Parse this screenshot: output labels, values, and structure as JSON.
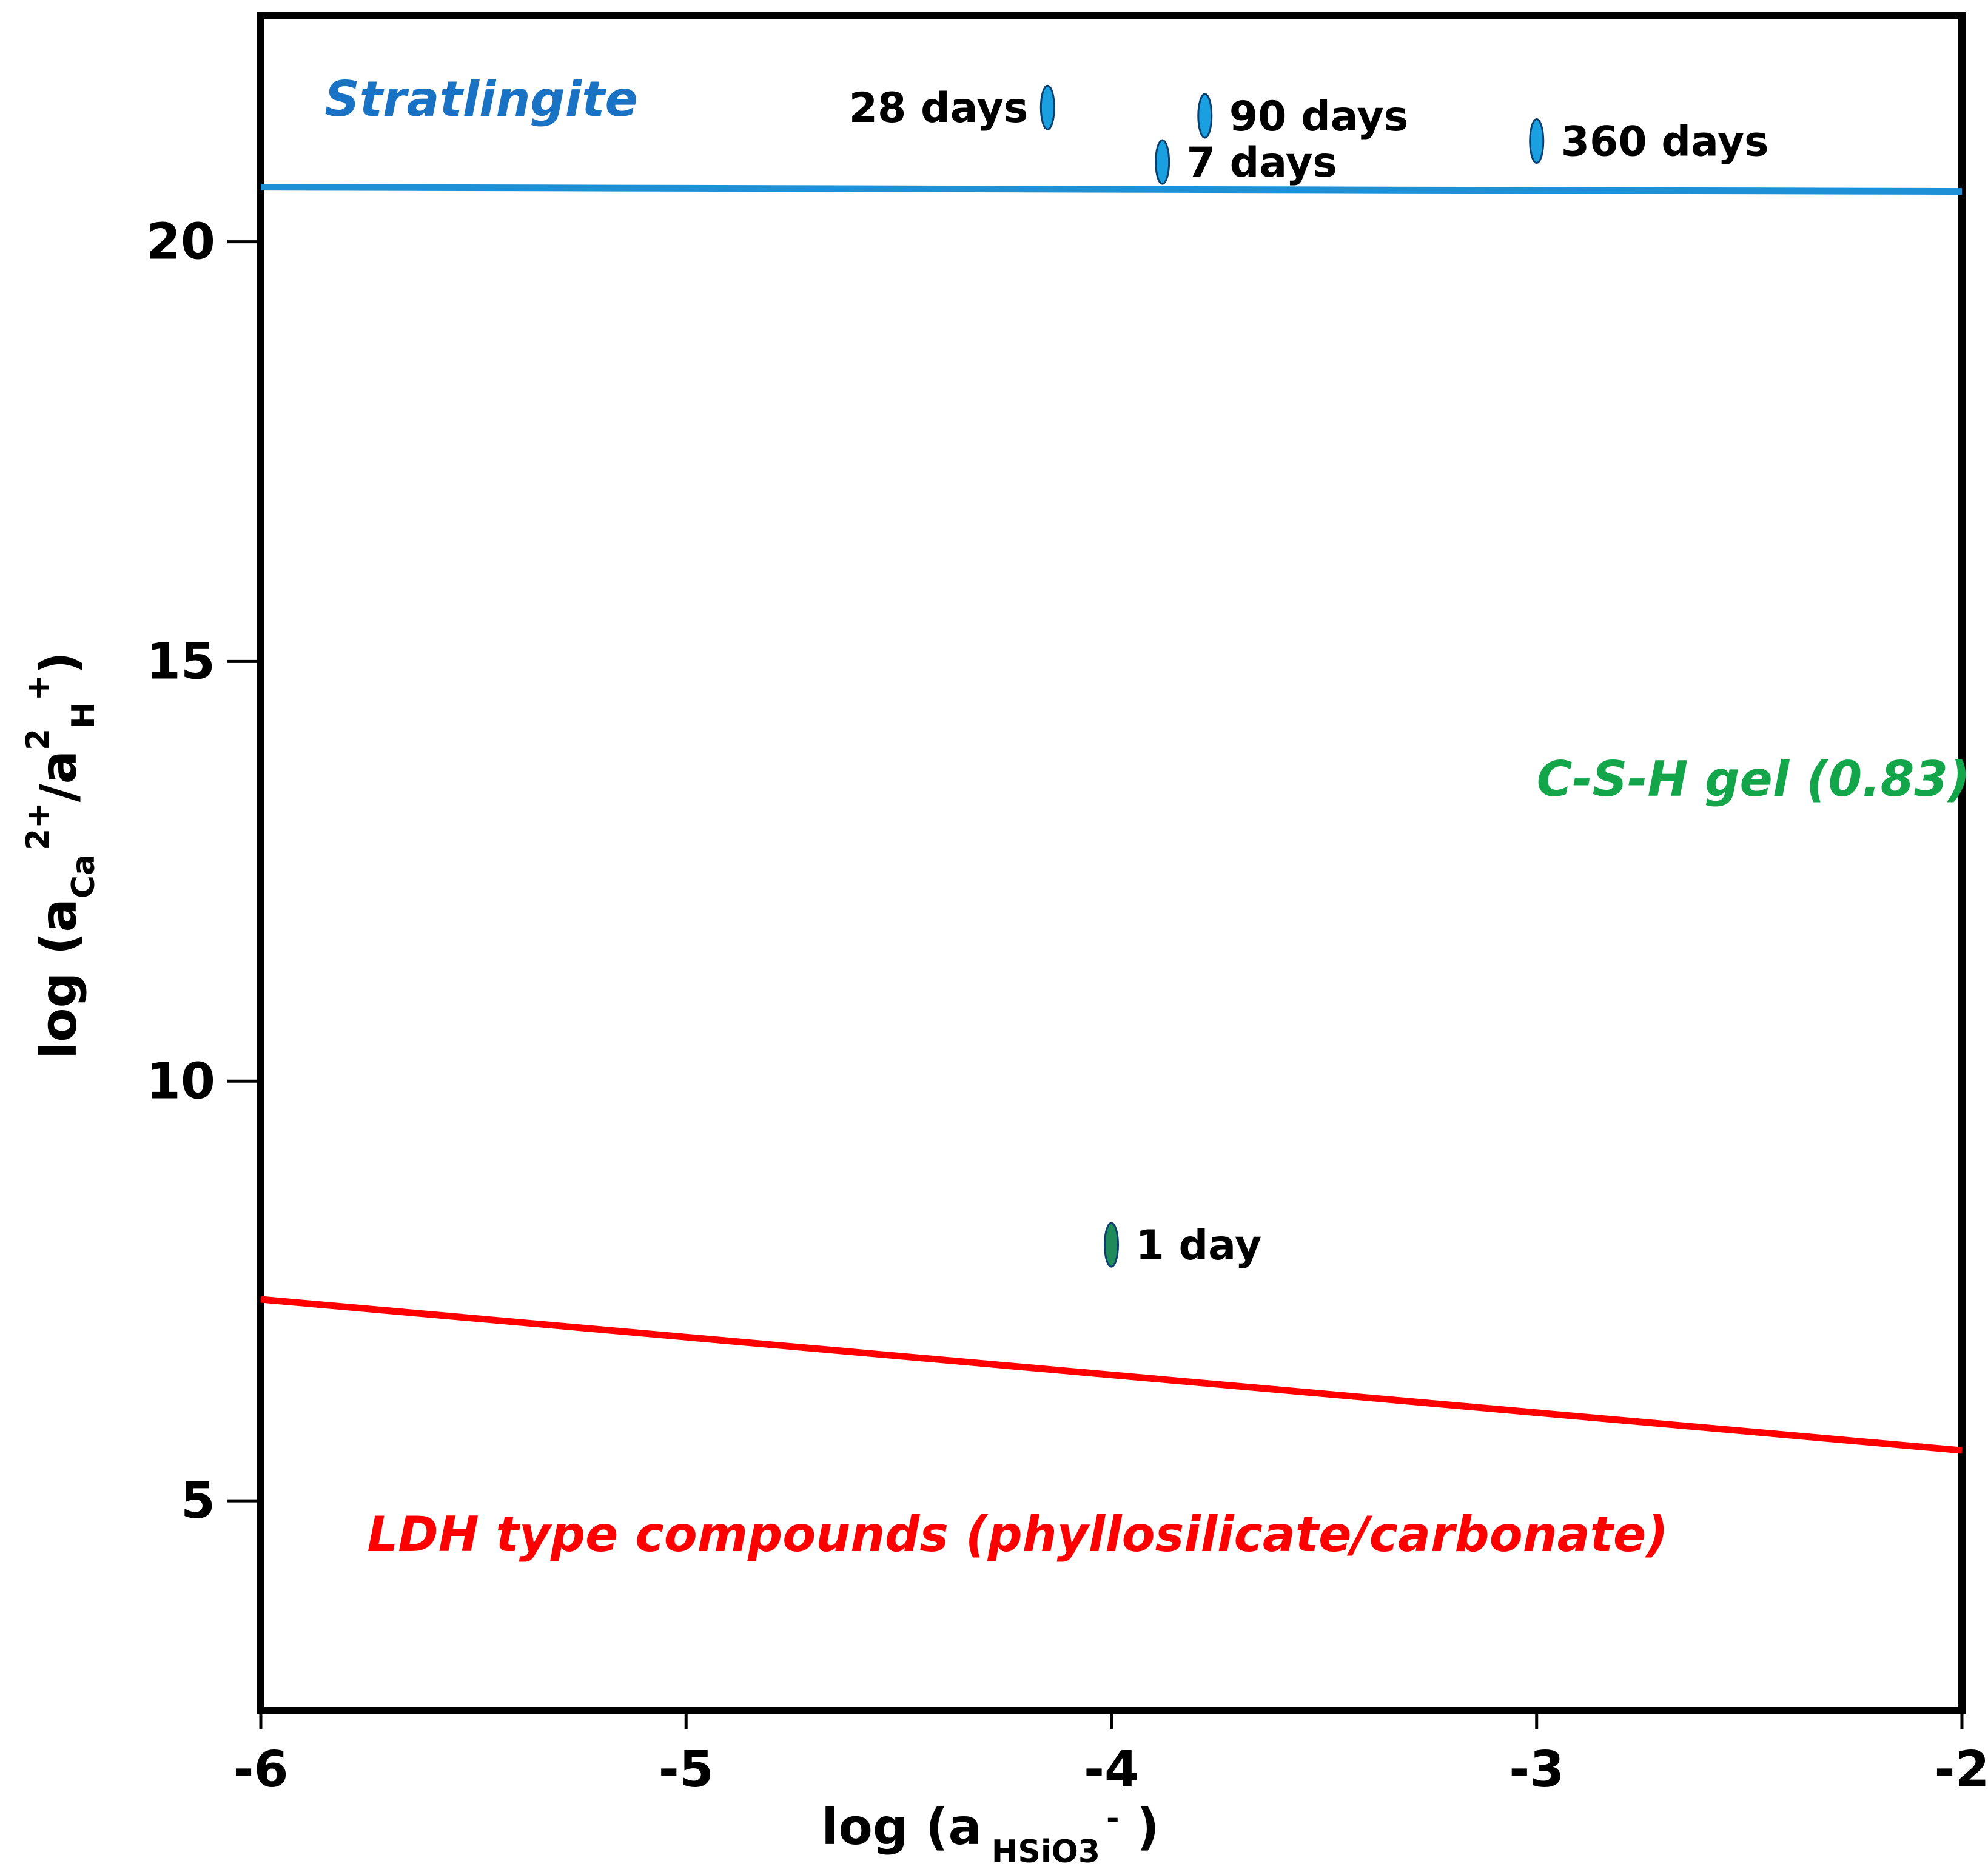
{
  "chart_data": {
    "type": "scatter",
    "title": "",
    "xlabel": {
      "prefix": "log (a",
      "subscript": "HSiO3",
      "superscript": "-",
      "suffix": " )"
    },
    "ylabel": {
      "prefix": "log (a",
      "sub1": "Ca",
      "sup1": "2+",
      "mid": "/a",
      "sup2": "2",
      "sub2": "H",
      "sup3": "+",
      "suffix": ")"
    },
    "xlim": [
      -6,
      -2
    ],
    "ylim": [
      2.5,
      22.7
    ],
    "xticks": [
      -6,
      -5,
      -4,
      -3,
      -2
    ],
    "xtick_labels": [
      "-6",
      "-5",
      "-4",
      "-3",
      "-2"
    ],
    "yticks": [
      5,
      10,
      15,
      20
    ],
    "ytick_labels": [
      "5",
      "10",
      "15",
      "20"
    ],
    "grid": false,
    "boundaries": [
      {
        "name": "stratlingite-boundary",
        "color": "#1e90d6",
        "points": [
          [
            -6,
            20.65
          ],
          [
            -2,
            20.6
          ]
        ]
      },
      {
        "name": "ldh-boundary",
        "color": "#ff0000",
        "points": [
          [
            -6,
            7.4
          ],
          [
            -2,
            5.6
          ]
        ]
      }
    ],
    "regions": [
      {
        "name": "stratlingite",
        "label": "Stratlingite",
        "color": "#1a72c4",
        "anchor": [
          -5.85,
          21.5
        ]
      },
      {
        "name": "csh-gel",
        "label": "C-S-H gel (0.83)",
        "color": "#13a54a",
        "anchor": [
          -3.0,
          13.4
        ]
      },
      {
        "name": "ldh",
        "label": "LDH type compounds (phyllosilicate/carbonate)",
        "color": "#ff0000",
        "anchor": [
          -5.75,
          4.4
        ]
      }
    ],
    "series": [
      {
        "name": "samples",
        "points": [
          {
            "label": "1 day",
            "x": -4.0,
            "y": 8.05,
            "color": "#1f8a5a",
            "label_side": "right"
          },
          {
            "label": "7 days",
            "x": -3.88,
            "y": 20.95,
            "color": "#1a9fe0",
            "label_side": "right"
          },
          {
            "label": "28 days",
            "x": -4.15,
            "y": 21.6,
            "color": "#1a9fe0",
            "label_side": "left"
          },
          {
            "label": "90 days",
            "x": -3.78,
            "y": 21.5,
            "color": "#1a9fe0",
            "label_side": "right"
          },
          {
            "label": "360 days",
            "x": -3.0,
            "y": 21.2,
            "color": "#1a9fe0",
            "label_side": "right"
          }
        ]
      }
    ]
  }
}
